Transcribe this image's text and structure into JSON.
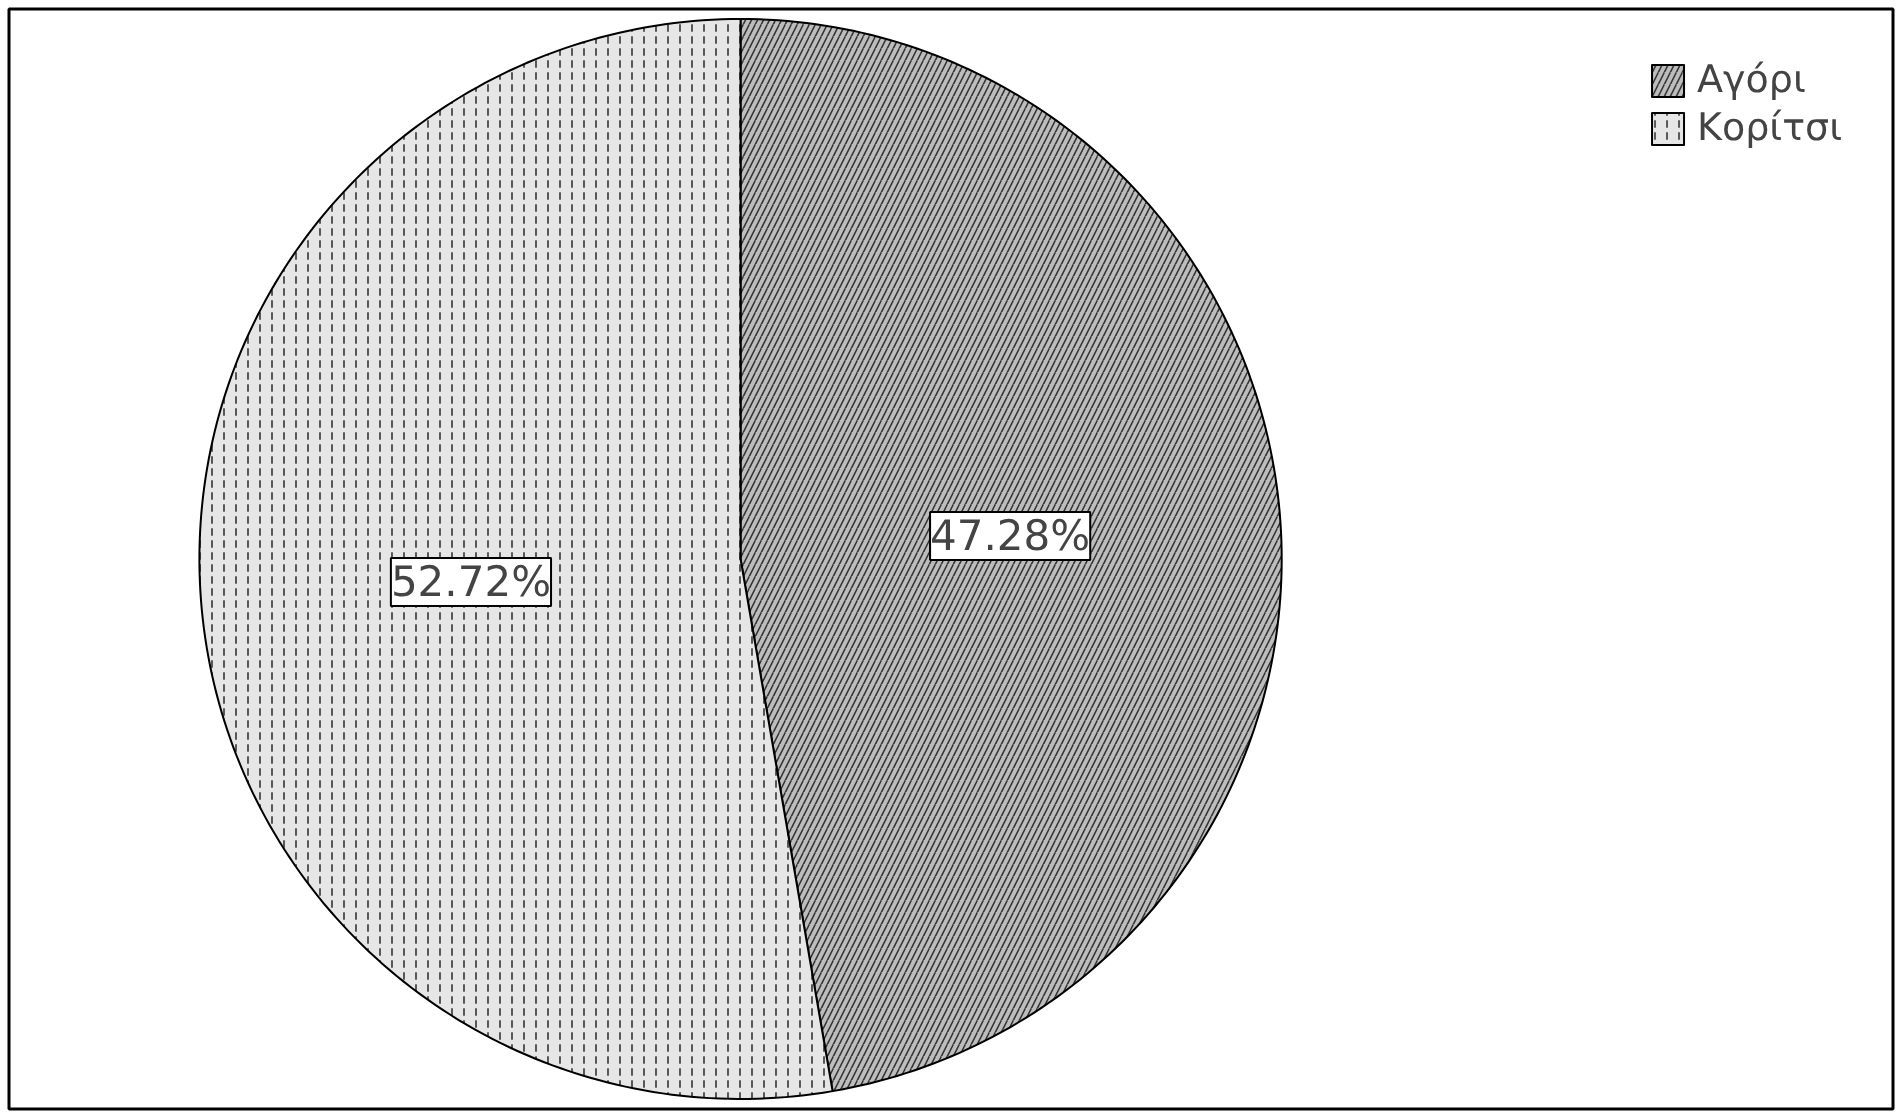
{
  "chart_data": {
    "type": "pie",
    "categories": [
      "Αγόρι",
      "Κορίτσι"
    ],
    "values": [
      47.28,
      52.72
    ],
    "colors": [
      "#bdbdbd",
      "#e6e6e6"
    ],
    "value_labels": [
      "47.28%",
      "52.72%"
    ],
    "legend": "top right"
  }
}
